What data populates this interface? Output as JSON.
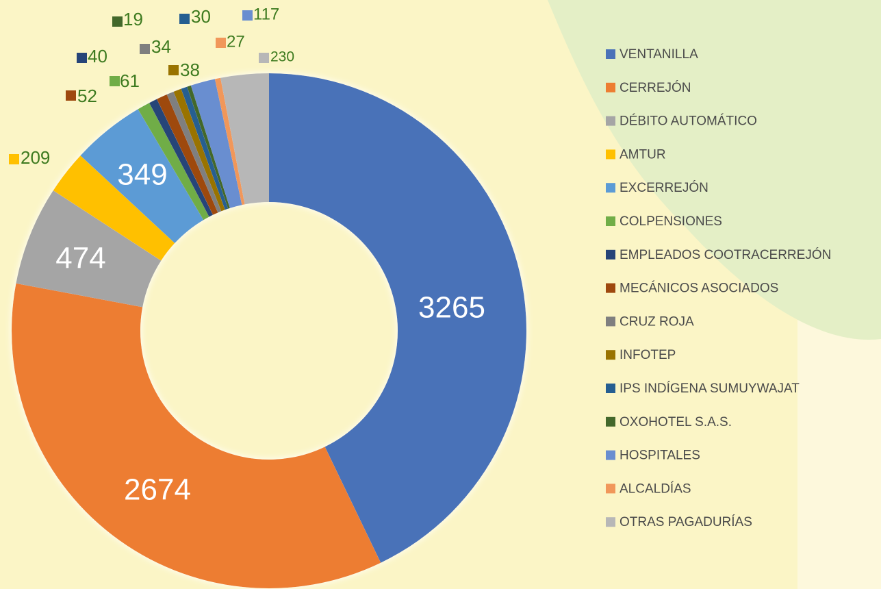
{
  "chart_data": {
    "type": "donut",
    "categories": [
      "VENTANILLA",
      "CERREJÓN",
      "DÉBITO AUTOMÁTICO",
      "AMTUR",
      "EXCERREJÓN",
      "COLPENSIONES",
      "EMPLEADOS COOTRACERREJÓN",
      "MECÁNICOS ASOCIADOS",
      "CRUZ ROJA",
      "INFOTEP",
      "IPS INDÍGENA SUMUYWAJAT",
      "OXOHOTEL S.A.S.",
      "HOSPITALES",
      "ALCALDÍAS",
      "OTRAS PAGADURÍAS"
    ],
    "values": [
      3265,
      2674,
      474,
      209,
      349,
      61,
      40,
      52,
      34,
      38,
      30,
      19,
      117,
      27,
      230
    ],
    "colors": [
      "#4a72b8",
      "#ed7d31",
      "#a5a5a5",
      "#ffc000",
      "#5b9bd5",
      "#70ad47",
      "#264478",
      "#9e480e",
      "#7f7f7f",
      "#997300",
      "#255e91",
      "#43682b",
      "#698ed0",
      "#f1975a",
      "#b7b7b7"
    ],
    "legend": "right"
  }
}
